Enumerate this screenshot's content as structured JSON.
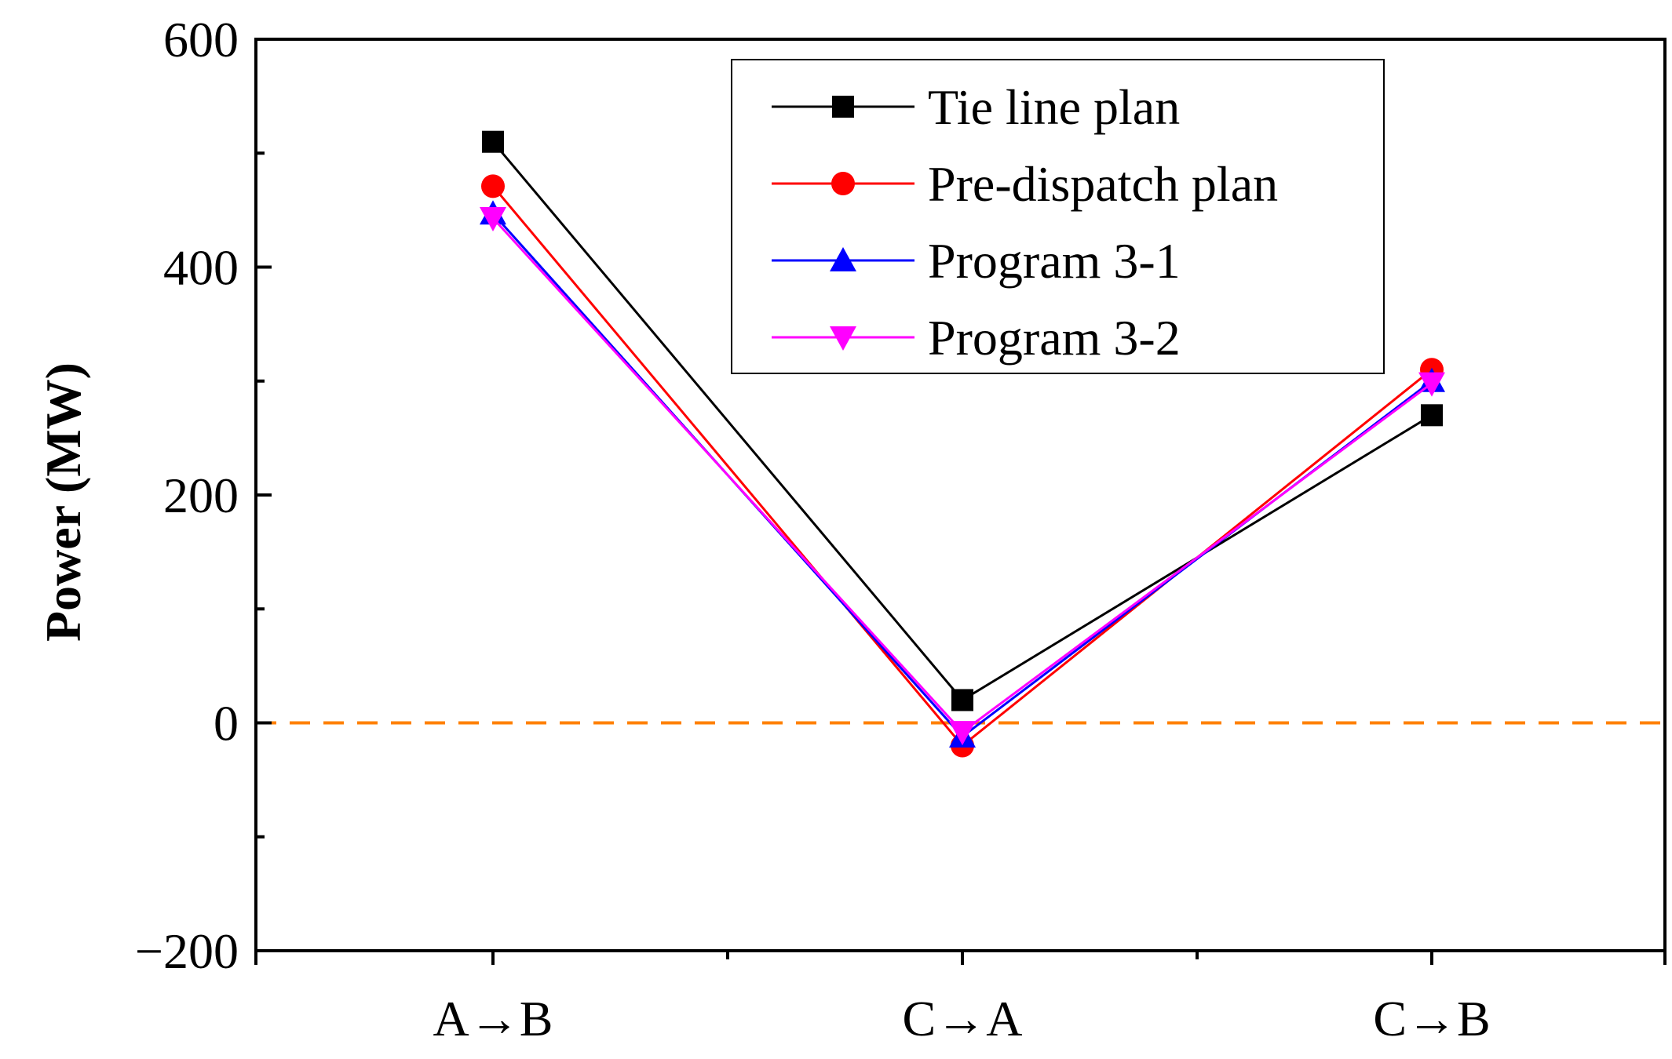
{
  "chart_data": {
    "type": "line",
    "title": "",
    "xlabel": "",
    "ylabel": "Power (MW)",
    "categories": [
      "A→B",
      "C→A",
      "C→B"
    ],
    "ylim": [
      -200,
      600
    ],
    "yticks": [
      -200,
      0,
      200,
      400,
      600
    ],
    "ytick_labels": [
      "−200",
      "0",
      "200",
      "400",
      "600"
    ],
    "reference_line": {
      "y": 0,
      "color": "#ff8000",
      "style": "dashed"
    },
    "legend_position": "top-right",
    "series": [
      {
        "name": "Tie line plan",
        "values": [
          510,
          20,
          270
        ],
        "color": "#000000",
        "marker": "square"
      },
      {
        "name": "Pre-dispatch plan",
        "values": [
          471,
          -20,
          310
        ],
        "color": "#ff0000",
        "marker": "circle"
      },
      {
        "name": "Program 3-1",
        "values": [
          447,
          -12,
          300
        ],
        "color": "#0000ff",
        "marker": "triangle-up"
      },
      {
        "name": "Program 3-2",
        "values": [
          443,
          -8,
          298
        ],
        "color": "#ff00ff",
        "marker": "triangle-down"
      }
    ]
  }
}
